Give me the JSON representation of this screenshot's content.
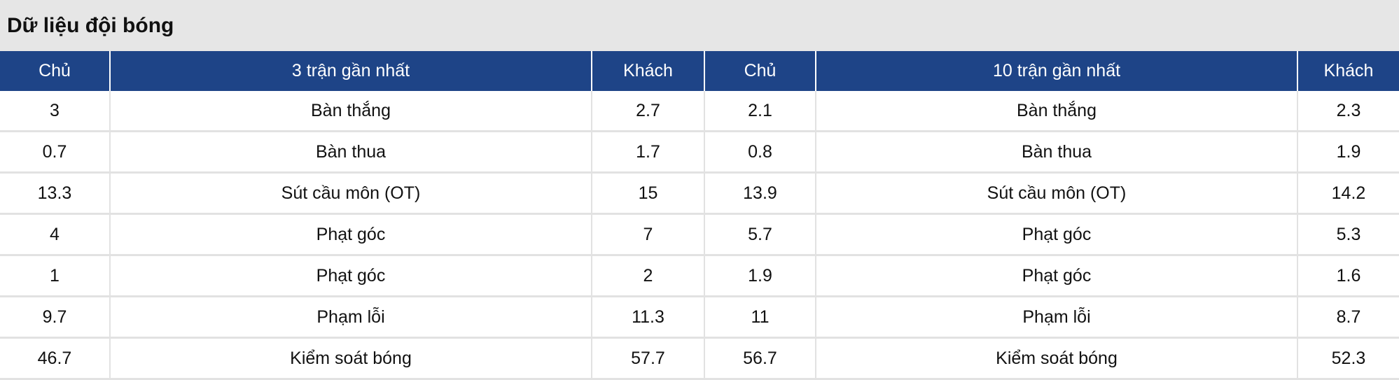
{
  "title": "Dữ liệu đội bóng",
  "headers": [
    "Chủ",
    "3 trận gần nhất",
    "Khách",
    "Chủ",
    "10 trận gần nhất",
    "Khách"
  ],
  "rows": [
    [
      "3",
      "Bàn thắng",
      "2.7",
      "2.1",
      "Bàn thắng",
      "2.3"
    ],
    [
      "0.7",
      "Bàn thua",
      "1.7",
      "0.8",
      "Bàn thua",
      "1.9"
    ],
    [
      "13.3",
      "Sút cầu môn (OT)",
      "15",
      "13.9",
      "Sút cầu môn (OT)",
      "14.2"
    ],
    [
      "4",
      "Phạt góc",
      "7",
      "5.7",
      "Phạt góc",
      "5.3"
    ],
    [
      "1",
      "Phạt góc",
      "2",
      "1.9",
      "Phạt góc",
      "1.6"
    ],
    [
      "9.7",
      "Phạm lỗi",
      "11.3",
      "11",
      "Phạm lỗi",
      "8.7"
    ],
    [
      "46.7",
      "Kiểm soát bóng",
      "57.7",
      "56.7",
      "Kiểm soát bóng",
      "52.3"
    ]
  ],
  "colors": {
    "header_bg": "#1e4487",
    "title_bg": "#e6e6e6"
  }
}
